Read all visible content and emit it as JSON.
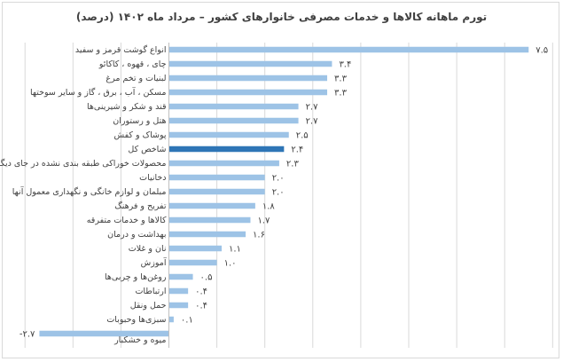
{
  "chart_data": {
    "type": "bar",
    "orientation": "horizontal",
    "title": "تورم ماهانه کالاها و خدمات مصرفی خانوارهای کشور – مرداد ماه ۱۴۰۲ (درصد)",
    "categories": [
      "انواع گوشت قرمز و سفید",
      "چای ، قهوه ، کاکائو",
      "لبنیات و تخم مرغ",
      "مسکن ، آب ، برق ، گاز و سایر سوختها",
      "قند و شکر و شیرینی‌ها",
      "هتل و رستوران",
      "پوشاک و کفش",
      "شاخص کل",
      "محصولات خوراکی طبقه بندی نشده در جای دیگر",
      "دخانیات",
      "مبلمان و لوازم خانگی و نگهداری معمول آنها",
      "تفریح و فرهنگ",
      "کالاها و خدمات متفرقه",
      "بهداشت و درمان",
      "نان و غلات",
      "آموزش",
      "روغن‌ها و چربی‌ها",
      "ارتباطات",
      "حمل ونقل",
      "سبزی‌ها وحبوبات",
      "میوه و خشکبار"
    ],
    "values": [
      7.5,
      3.4,
      3.3,
      3.3,
      2.7,
      2.7,
      2.5,
      2.4,
      2.3,
      2.0,
      2.0,
      1.8,
      1.7,
      1.6,
      1.1,
      1.0,
      0.5,
      0.4,
      0.4,
      0.1,
      -2.7
    ],
    "value_labels": [
      "۷.۵",
      "۳.۴",
      "۳.۳",
      "۳.۳",
      "۲.۷",
      "۲.۷",
      "۲.۵",
      "۲.۴",
      "۲.۳",
      "۲.۰",
      "۲.۰",
      "۱.۸",
      "۱.۷",
      "۱.۶",
      "۱.۱",
      "۱.۰",
      "۰.۵",
      "۰.۴",
      "۰.۴",
      "۰.۱",
      "-۲.۷"
    ],
    "highlight_category": "شاخص کل",
    "colors": {
      "bar": "#9dc3e6",
      "highlight": "#2e75b6",
      "grid": "#d9d9d9",
      "text": "#404040"
    },
    "xlim": [
      -3,
      8
    ],
    "xlabel": "",
    "ylabel": "",
    "grid": true,
    "legend": "none"
  }
}
